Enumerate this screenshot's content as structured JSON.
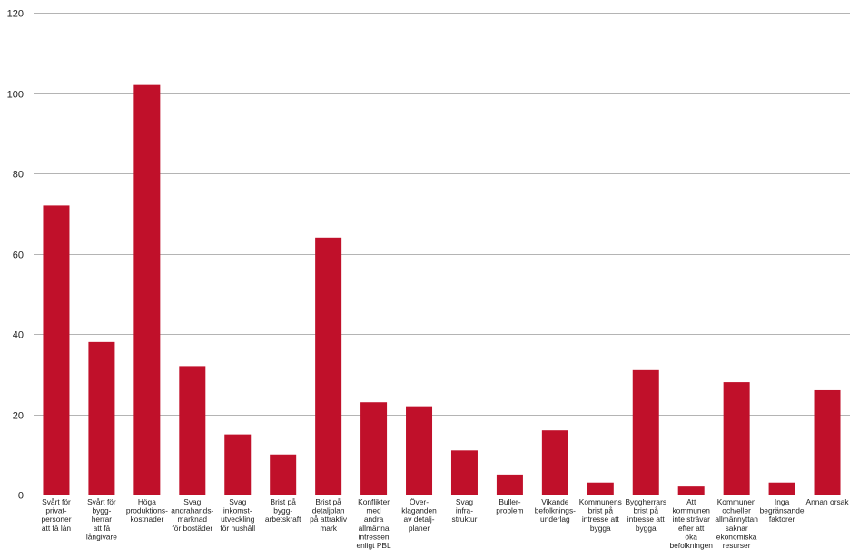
{
  "chart_data": {
    "type": "bar",
    "title": "",
    "xlabel": "",
    "ylabel": "",
    "ylim": [
      0,
      120
    ],
    "yticks": [
      0,
      20,
      40,
      60,
      80,
      100,
      120
    ],
    "grid": true,
    "legend": "none",
    "bar_color": "#c0102a",
    "categories": [
      [
        "Svårt för",
        "privat-",
        "personer",
        "att få lån"
      ],
      [
        "Svårt för",
        "bygg-",
        "herrar",
        "att få",
        "långivare"
      ],
      [
        "Höga",
        "produktions-",
        "kostnader"
      ],
      [
        "Svag",
        "andrahands-",
        "marknad",
        "för bostäder"
      ],
      [
        "Svag",
        "inkomst-",
        "utveckling",
        "för hushåll"
      ],
      [
        "Brist på",
        "bygg-",
        "arbetskraft"
      ],
      [
        "Brist på",
        "detaljplan",
        "på attraktiv",
        "mark"
      ],
      [
        "Konflikter",
        "med",
        "andra",
        "allmänna",
        "intressen",
        "enligt PBL"
      ],
      [
        "Över-",
        "klaganden",
        "av detalj-",
        "planer"
      ],
      [
        "Svag",
        "infra-",
        "struktur"
      ],
      [
        "Buller-",
        "problem"
      ],
      [
        "Vikande",
        "befolknings-",
        "underlag"
      ],
      [
        "Kommunens",
        "brist på",
        "intresse att",
        "bygga"
      ],
      [
        "Byggherrars",
        "brist på",
        "intresse att",
        "bygga"
      ],
      [
        "Att",
        "kommunen",
        "inte strävar",
        "efter att",
        "öka",
        "befolkningen"
      ],
      [
        "Kommunen",
        "och/eller",
        "allmännyttan",
        "saknar",
        "ekonomiska",
        "resurser"
      ],
      [
        "Inga",
        "begränsande",
        "faktorer"
      ],
      [
        "Annan orsak"
      ]
    ],
    "values": [
      72,
      38,
      102,
      32,
      15,
      10,
      64,
      23,
      22,
      11,
      5,
      16,
      3,
      31,
      2,
      28,
      3,
      26
    ]
  }
}
